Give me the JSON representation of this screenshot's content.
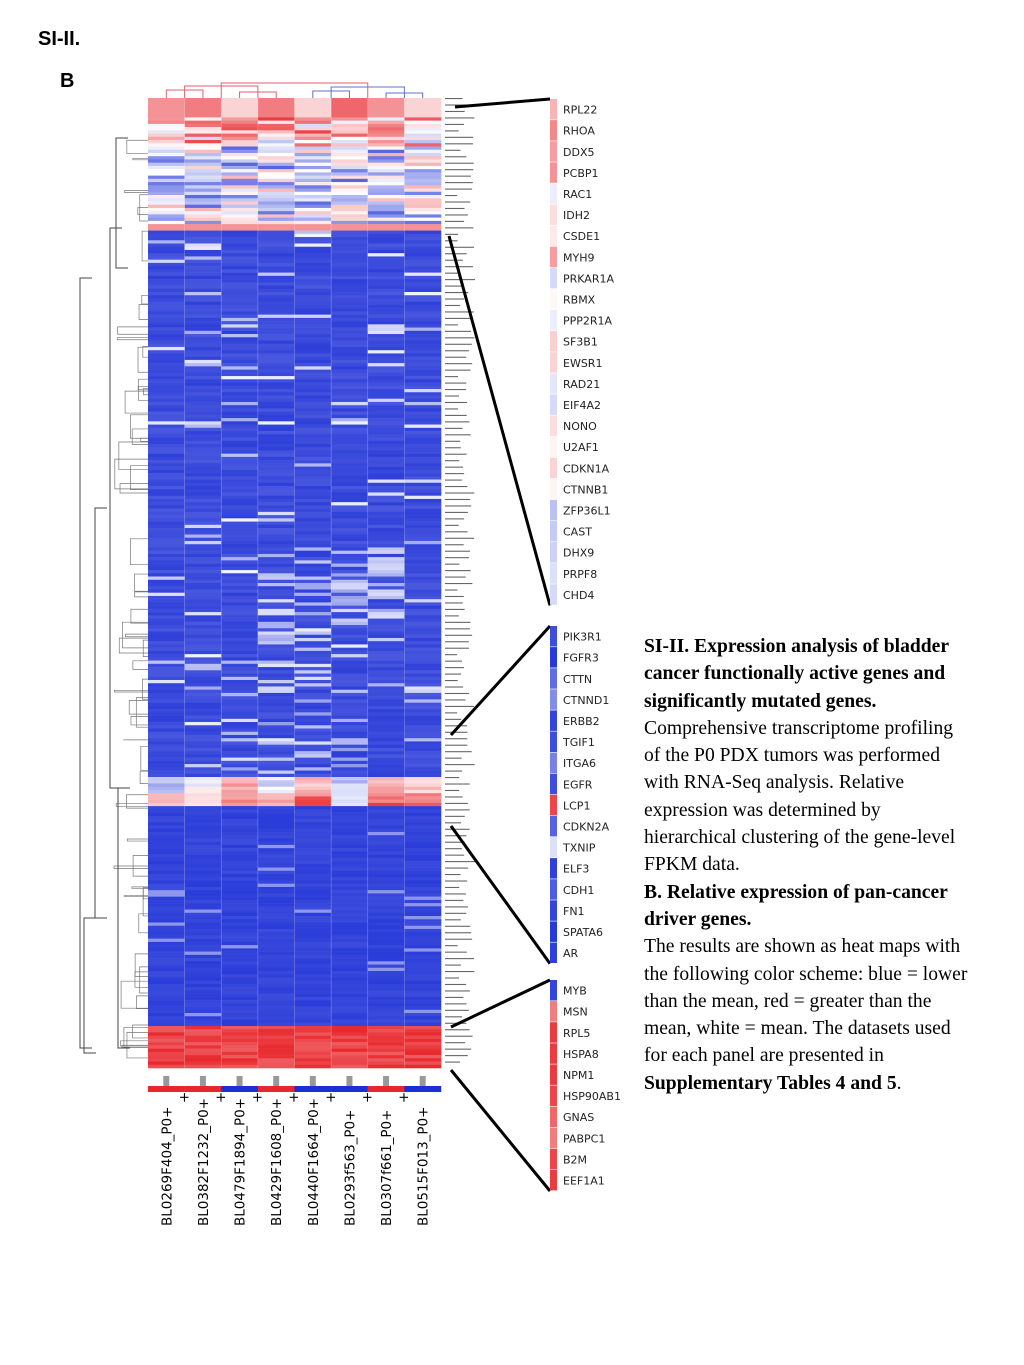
{
  "header": {
    "figure_label": "SI-II.",
    "panel_label": "B"
  },
  "colors": {
    "low": "#1c2fd6",
    "high": "#e8262b",
    "mean": "#ffffff",
    "connector": "#000000"
  },
  "samples": [
    "BL0269F404_P0+",
    "BL0382F1232_P0+",
    "BL0479F1894_P0+",
    "BL0429F1608_P0+",
    "BL0440F1664_P0+",
    "BL0293f563_P0+",
    "BL0307f661_P0+",
    "BL0515F013_P0+"
  ],
  "sample_groups": [
    "high",
    "high",
    "low",
    "high",
    "low",
    "low",
    "high",
    "low"
  ],
  "gene_panels": [
    {
      "genes": [
        {
          "name": "RPL22",
          "value": 0.35
        },
        {
          "name": "RHOA",
          "value": 0.55
        },
        {
          "name": "DDX5",
          "value": 0.45
        },
        {
          "name": "PCBP1",
          "value": 0.5
        },
        {
          "name": "RAC1",
          "value": -0.08
        },
        {
          "name": "IDH2",
          "value": 0.15
        },
        {
          "name": "CSDE1",
          "value": 0.1
        },
        {
          "name": "MYH9",
          "value": 0.45
        },
        {
          "name": "PRKAR1A",
          "value": -0.18
        },
        {
          "name": "RBMX",
          "value": 0.03
        },
        {
          "name": "PPP2R1A",
          "value": -0.08
        },
        {
          "name": "SF3B1",
          "value": 0.22
        },
        {
          "name": "EWSR1",
          "value": 0.2
        },
        {
          "name": "RAD21",
          "value": -0.12
        },
        {
          "name": "EIF4A2",
          "value": -0.18
        },
        {
          "name": "NONO",
          "value": 0.15
        },
        {
          "name": "U2AF1",
          "value": 0.05
        },
        {
          "name": "CDKN1A",
          "value": 0.2
        },
        {
          "name": "CTNNB1",
          "value": 0.05
        },
        {
          "name": "ZFP36L1",
          "value": -0.3
        },
        {
          "name": "CAST",
          "value": -0.25
        },
        {
          "name": "DHX9",
          "value": -0.22
        },
        {
          "name": "PRPF8",
          "value": -0.15
        },
        {
          "name": "CHD4",
          "value": -0.18
        }
      ]
    },
    {
      "genes": [
        {
          "name": "PIK3R1",
          "value": -0.85
        },
        {
          "name": "FGFR3",
          "value": -0.95
        },
        {
          "name": "CTTN",
          "value": -0.7
        },
        {
          "name": "CTNND1",
          "value": -0.55
        },
        {
          "name": "ERBB2",
          "value": -0.9
        },
        {
          "name": "TGIF1",
          "value": -0.85
        },
        {
          "name": "ITGA6",
          "value": -0.6
        },
        {
          "name": "EGFR",
          "value": -0.85
        },
        {
          "name": "LCP1",
          "value": 0.85
        },
        {
          "name": "CDKN2A",
          "value": -0.75
        },
        {
          "name": "TXNIP",
          "value": -0.15
        },
        {
          "name": "ELF3",
          "value": -0.92
        },
        {
          "name": "CDH1",
          "value": -0.78
        },
        {
          "name": "FN1",
          "value": -0.9
        },
        {
          "name": "SPATA6",
          "value": -0.95
        },
        {
          "name": "AR",
          "value": -0.92
        }
      ]
    },
    {
      "genes": [
        {
          "name": "MYB",
          "value": -0.9
        },
        {
          "name": "MSN",
          "value": 0.6
        },
        {
          "name": "RPL5",
          "value": 0.9
        },
        {
          "name": "HSPA8",
          "value": 0.9
        },
        {
          "name": "NPM1",
          "value": 0.9
        },
        {
          "name": "HSP90AB1",
          "value": 0.85
        },
        {
          "name": "GNAS",
          "value": 0.7
        },
        {
          "name": "PABPC1",
          "value": 0.6
        },
        {
          "name": "B2M",
          "value": 0.85
        },
        {
          "name": "EEF1A1",
          "value": 0.9
        }
      ]
    }
  ],
  "caption": {
    "title_bold": "SI-II. Expression analysis of bladder cancer functionally active genes and significantly mutated genes.",
    "text1": " Comprehensive transcriptome profiling of the P0 PDX tumors was performed with RNA-Seq analysis. Relative expression was determined by hierarchical clustering of the gene-level FPKM data.",
    "panel_b_bold": "B. Relative expression of pan-cancer driver genes.",
    "text2": "The results are shown as heat maps with the following color scheme: blue = lower than the mean, red = greater than the mean, white = mean. The datasets used for each panel are presented in ",
    "tables_bold": "Supplementary Tables 4 and 5",
    "end": "."
  }
}
